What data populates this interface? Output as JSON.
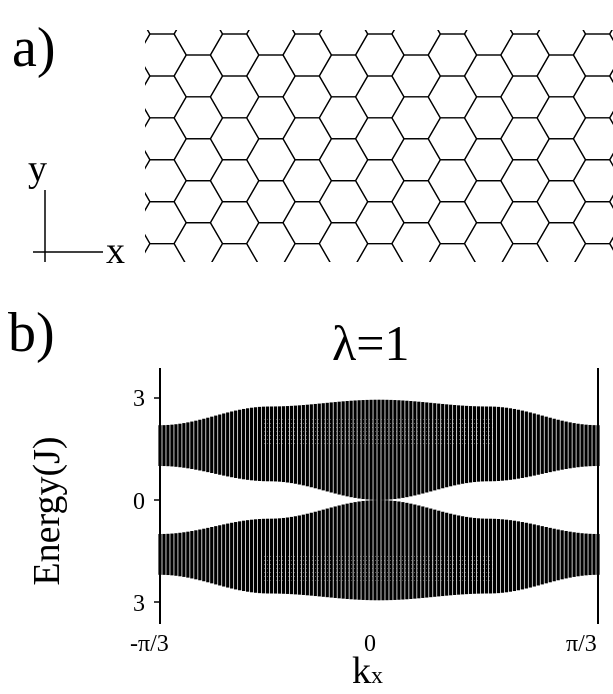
{
  "figure": {
    "panel_a_label": "a)",
    "panel_b_label": "b)",
    "axes_indicator": {
      "y": "y",
      "x": "x"
    }
  },
  "chart_data": {
    "type": "area",
    "title": "λ=1",
    "ylabel": "Energy(J)",
    "xlabel_main": "k",
    "xlabel_sub": "x",
    "x_ticks": [
      "-π/3",
      "0",
      "π/3"
    ],
    "y_ticks": [
      "3",
      "0",
      "3"
    ],
    "xlim": [
      -1.0472,
      1.0472
    ],
    "ylim": [
      -3,
      3
    ],
    "series": [
      {
        "band": "upper",
        "x": [
          -1.0472,
          -0.5236,
          0,
          0.5236,
          1.0472
        ],
        "upper": [
          2.2,
          2.75,
          2.95,
          2.75,
          2.2
        ],
        "lower": [
          1.0,
          0.55,
          0.0,
          0.55,
          1.0
        ]
      },
      {
        "band": "lower",
        "x": [
          -1.0472,
          -0.5236,
          0,
          0.5236,
          1.0472
        ],
        "upper": [
          -1.0,
          -0.55,
          0.0,
          -0.55,
          -1.0
        ],
        "lower": [
          -2.2,
          -2.75,
          -2.95,
          -2.75,
          -2.2
        ]
      }
    ],
    "colors": {
      "fill": "#000000",
      "stripe_gap": "#ffffff"
    }
  }
}
